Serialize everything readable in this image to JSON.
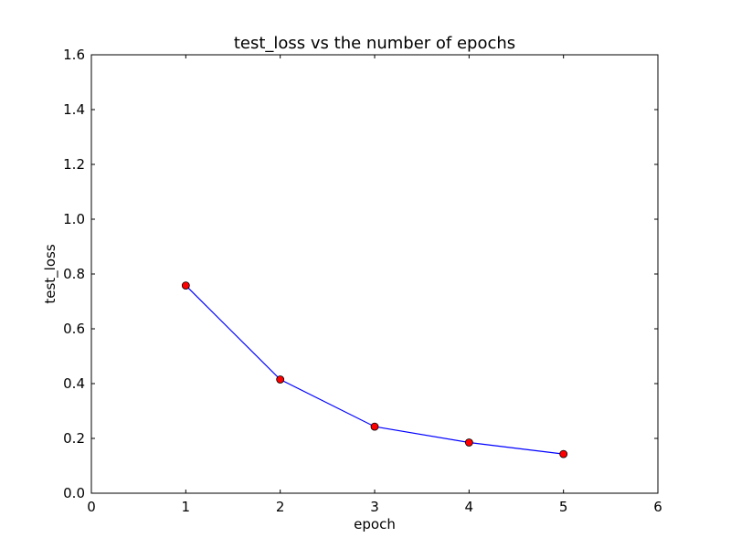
{
  "chart_data": {
    "type": "line",
    "title": "test_loss  vs the number of epochs",
    "xlabel": "epoch",
    "ylabel": "test_loss",
    "xlim": [
      0,
      6
    ],
    "ylim": [
      0,
      1.6
    ],
    "xticks": [
      0,
      1,
      2,
      3,
      4,
      5,
      6
    ],
    "xtick_labels": [
      "0",
      "1",
      "2",
      "3",
      "4",
      "5",
      "6"
    ],
    "yticks": [
      0.0,
      0.2,
      0.4,
      0.6,
      0.8,
      1.0,
      1.2,
      1.4,
      1.6
    ],
    "ytick_labels": [
      "0.0",
      "0.2",
      "0.4",
      "0.6",
      "0.8",
      "1.0",
      "1.2",
      "1.4",
      "1.6"
    ],
    "grid": false,
    "legend": "none",
    "series": [
      {
        "x": [
          1,
          2,
          3,
          4,
          5
        ],
        "y": [
          0.758,
          0.415,
          0.243,
          0.185,
          0.143
        ],
        "line_color": "#0000ff",
        "marker": "circle",
        "marker_color": "#ff0000",
        "marker_edge_color": "#000000"
      }
    ]
  }
}
